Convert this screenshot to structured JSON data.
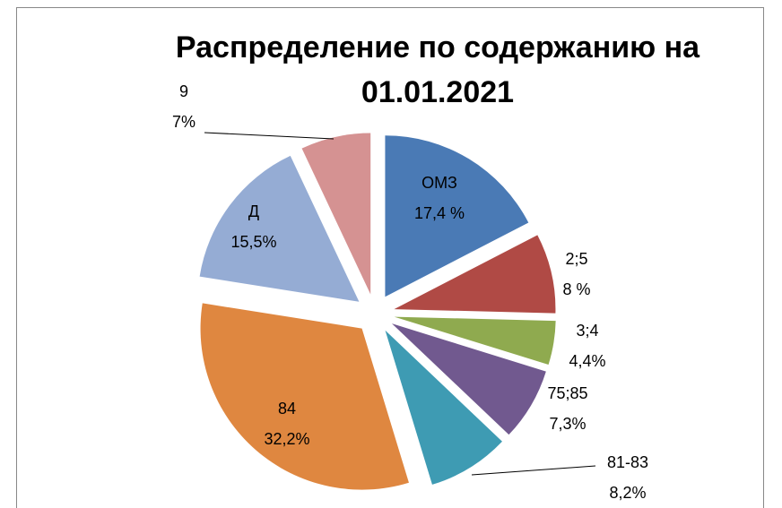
{
  "chart_data": {
    "type": "pie",
    "title": "Распределение по содержанию на 01.01.2021",
    "categories": [
      "ОМЗ",
      "2;5",
      "3;4",
      "75;85",
      "81-83",
      "84",
      "Д",
      "9"
    ],
    "values": [
      17.4,
      8,
      4.4,
      7.3,
      8.2,
      32.2,
      15.5,
      7
    ],
    "value_labels": [
      "17,4 %",
      "8 %",
      "4,4%",
      "7,3%",
      "8,2%",
      "32,2%",
      "15,5%",
      "7%"
    ],
    "colors": [
      "#4a7ab5",
      "#b04a45",
      "#8faa4f",
      "#71598f",
      "#3e9bb3",
      "#df8740",
      "#95acd4",
      "#d59292"
    ]
  }
}
